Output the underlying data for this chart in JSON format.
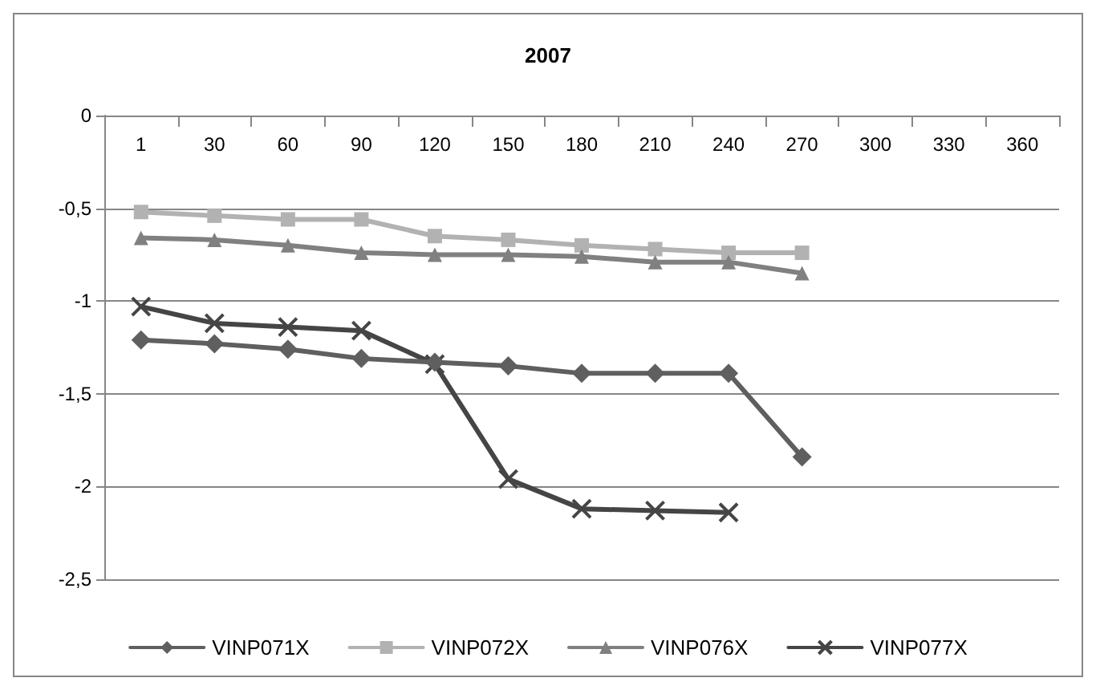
{
  "chart_data": {
    "type": "line",
    "title": "2007",
    "categories": [
      "1",
      "30",
      "60",
      "90",
      "120",
      "150",
      "180",
      "210",
      "240",
      "270",
      "300",
      "330",
      "360"
    ],
    "series": [
      {
        "name": "VINP071X",
        "color": "#5f5f5f",
        "marker": "diamond",
        "values": [
          -1.21,
          -1.23,
          -1.26,
          -1.31,
          -1.33,
          -1.35,
          -1.39,
          -1.39,
          -1.39,
          -1.84,
          null,
          null,
          null
        ]
      },
      {
        "name": "VINP072X",
        "color": "#b2b2b2",
        "marker": "square",
        "values": [
          -0.52,
          -0.54,
          -0.56,
          -0.56,
          -0.65,
          -0.67,
          -0.7,
          -0.72,
          -0.74,
          -0.74,
          null,
          null,
          null
        ]
      },
      {
        "name": "VINP076X",
        "color": "#808080",
        "marker": "triangle",
        "values": [
          -0.66,
          -0.67,
          -0.7,
          -0.74,
          -0.75,
          -0.75,
          -0.76,
          -0.79,
          -0.79,
          -0.85,
          null,
          null,
          null
        ]
      },
      {
        "name": "VINP077X",
        "color": "#454545",
        "marker": "cross",
        "values": [
          -1.03,
          -1.12,
          -1.14,
          -1.16,
          -1.34,
          -1.96,
          -2.12,
          -2.13,
          -2.14,
          null,
          null,
          null,
          null
        ]
      }
    ],
    "ylim": [
      -2.5,
      0
    ],
    "yticks": [
      0,
      {
        "value": -0.5,
        "label": "-0,5"
      },
      -1,
      {
        "value": -1.5,
        "label": "-1,5"
      },
      -2,
      {
        "value": -2.5,
        "label": "-2,5"
      }
    ],
    "grid": "y",
    "legend": "bottom"
  }
}
